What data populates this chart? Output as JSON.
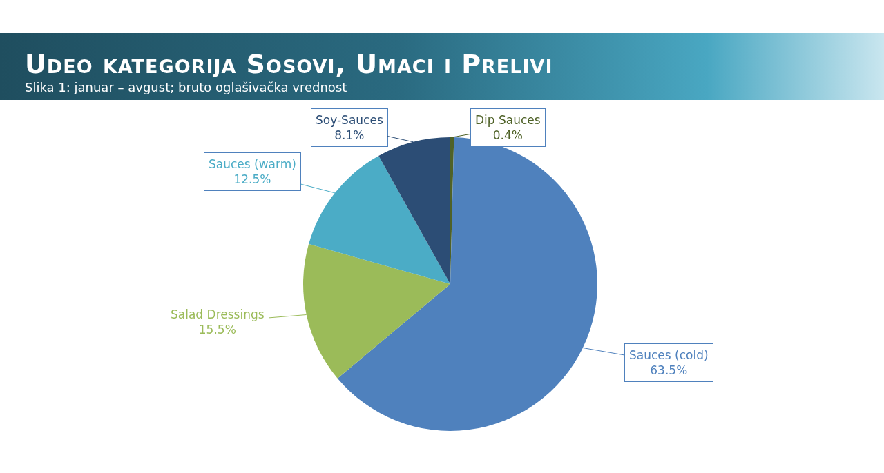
{
  "chart_data": {
    "type": "pie",
    "title": "Udeo kategorija Sosovi, Umaci i Prelivi",
    "subtitle": "Slika 1: januar – avgust; bruto oglašivačka vrednost",
    "categories": [
      "Dip Sauces",
      "Sauces (cold)",
      "Salad Dressings",
      "Sauces (warm)",
      "Soy-Sauces"
    ],
    "values": [
      0.4,
      63.5,
      15.5,
      12.5,
      8.1
    ],
    "value_labels": [
      "0.4%",
      "63.5%",
      "15.5%",
      "12.5%",
      "8.1%"
    ],
    "colors": [
      "#4f6228",
      "#4f81bd",
      "#9bbb59",
      "#4bacc6",
      "#2c4d75"
    ],
    "legend": false
  }
}
